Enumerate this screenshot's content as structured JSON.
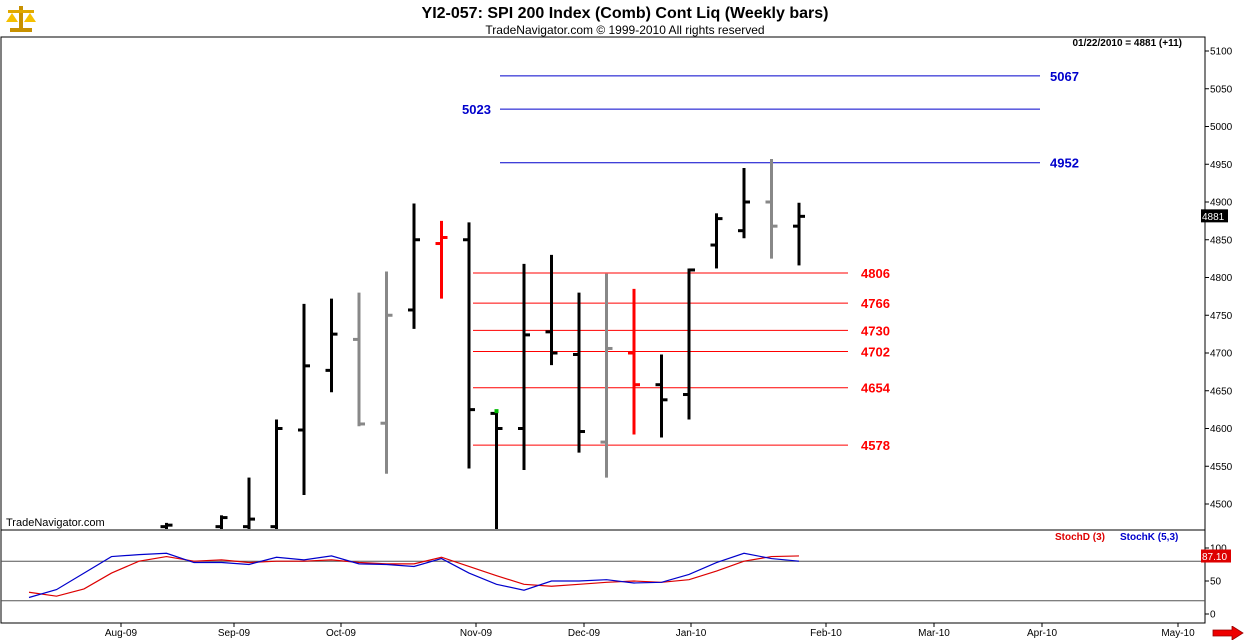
{
  "header": {
    "title": "YI2-057:  SPI 200 Index (Comb) Cont Liq  (Weekly bars)",
    "subtitle": "TradeNavigator.com © 1999-2010 All rights reserved",
    "readout": "01/22/2010 = 4881 (+11)",
    "watermark": "TradeNavigator.com"
  },
  "colors": {
    "up": "#000000",
    "down": "#888888",
    "red": "#ff0000",
    "blue": "#0000cc",
    "stochD": "#dd0000",
    "stochK": "#0000cc"
  },
  "chart_data": [
    {
      "type": "ohlc",
      "title": "YI2-057:  SPI 200 Index (Comb) Cont Liq  (Weekly bars)",
      "x_tick_labels": [
        "Aug-09",
        "Sep-09",
        "Oct-09",
        "Nov-09",
        "Dec-09",
        "Jan-10",
        "Feb-10",
        "Mar-10",
        "Apr-10",
        "May-10"
      ],
      "y_tick_labels": [
        "4500",
        "4550",
        "4600",
        "4650",
        "4700",
        "4750",
        "4800",
        "4850",
        "4900",
        "4950",
        "5000",
        "5050",
        "5100"
      ],
      "ylim": [
        4465,
        5115
      ],
      "last_price_label": "4881",
      "bars": [
        {
          "week": 5,
          "open": 4470,
          "high": 4475,
          "low": 4460,
          "close": 4472,
          "color": "black"
        },
        {
          "week": 7,
          "open": 4470,
          "high": 4485,
          "low": 4460,
          "close": 4482,
          "color": "black"
        },
        {
          "week": 8,
          "open": 4470,
          "high": 4535,
          "low": 4460,
          "close": 4480,
          "color": "black"
        },
        {
          "week": 9,
          "open": 4470,
          "high": 4612,
          "low": 4460,
          "close": 4600,
          "color": "black"
        },
        {
          "week": 10,
          "open": 4598,
          "high": 4765,
          "low": 4512,
          "close": 4683,
          "color": "black"
        },
        {
          "week": 11,
          "open": 4677,
          "high": 4772,
          "low": 4648,
          "close": 4725,
          "color": "black"
        },
        {
          "week": 12,
          "open": 4718,
          "high": 4780,
          "low": 4603,
          "close": 4606,
          "color": "gray"
        },
        {
          "week": 13,
          "open": 4607,
          "high": 4808,
          "low": 4540,
          "close": 4750,
          "color": "gray"
        },
        {
          "week": 14,
          "open": 4757,
          "high": 4898,
          "low": 4732,
          "close": 4850,
          "color": "black"
        },
        {
          "week": 15,
          "open": 4845,
          "high": 4875,
          "low": 4772,
          "close": 4853,
          "color": "red"
        },
        {
          "week": 16,
          "open": 4850,
          "high": 4873,
          "low": 4547,
          "close": 4625,
          "color": "black"
        },
        {
          "week": 17,
          "open": 4620,
          "high": 4625,
          "low": 4460,
          "close": 4600,
          "color": "black"
        },
        {
          "week": 18,
          "open": 4600,
          "high": 4818,
          "low": 4545,
          "close": 4724,
          "color": "black"
        },
        {
          "week": 19,
          "open": 4728,
          "high": 4830,
          "low": 4684,
          "close": 4700,
          "color": "black"
        },
        {
          "week": 20,
          "open": 4698,
          "high": 4780,
          "low": 4568,
          "close": 4596,
          "color": "black"
        },
        {
          "week": 21,
          "open": 4582,
          "high": 4805,
          "low": 4535,
          "close": 4706,
          "color": "gray"
        },
        {
          "week": 22,
          "open": 4700,
          "high": 4785,
          "low": 4592,
          "close": 4658,
          "color": "red"
        },
        {
          "week": 23,
          "open": 4658,
          "high": 4698,
          "low": 4588,
          "close": 4638,
          "color": "black"
        },
        {
          "week": 24,
          "open": 4645,
          "high": 4812,
          "low": 4612,
          "close": 4810,
          "color": "black"
        },
        {
          "week": 25,
          "open": 4843,
          "high": 4885,
          "low": 4812,
          "close": 4878,
          "color": "black"
        },
        {
          "week": 26,
          "open": 4862,
          "high": 4945,
          "low": 4852,
          "close": 4900,
          "color": "black"
        },
        {
          "week": 27,
          "open": 4900,
          "high": 4957,
          "low": 4825,
          "close": 4868,
          "color": "gray"
        },
        {
          "week": 28,
          "open": 4868,
          "high": 4899,
          "low": 4816,
          "close": 4881,
          "color": "black"
        }
      ],
      "levels": [
        {
          "value": 5067,
          "label": "5067",
          "color": "blue"
        },
        {
          "value": 5023,
          "label": "5023",
          "color": "blue"
        },
        {
          "value": 4952,
          "label": "4952",
          "color": "blue"
        },
        {
          "value": 4806,
          "label": "4806",
          "color": "red"
        },
        {
          "value": 4766,
          "label": "4766",
          "color": "red"
        },
        {
          "value": 4730,
          "label": "4730",
          "color": "red"
        },
        {
          "value": 4702,
          "label": "4702",
          "color": "red"
        },
        {
          "value": 4654,
          "label": "4654",
          "color": "red"
        },
        {
          "value": 4578,
          "label": "4578",
          "color": "red"
        }
      ]
    },
    {
      "type": "line",
      "y_tick_labels": [
        "0",
        "50",
        "100"
      ],
      "ylim": [
        -5,
        110
      ],
      "reference_lines": [
        80,
        20
      ],
      "last_value_label": "87.10",
      "series": [
        {
          "name": "StochD (3)",
          "values": [
            [
              0,
              33
            ],
            [
              1,
              27
            ],
            [
              2,
              38
            ],
            [
              3,
              62
            ],
            [
              4,
              80
            ],
            [
              5,
              87
            ],
            [
              6,
              80
            ],
            [
              7,
              82
            ],
            [
              8,
              78
            ],
            [
              9,
              80
            ],
            [
              10,
              80
            ],
            [
              11,
              82
            ],
            [
              12,
              78
            ],
            [
              13,
              76
            ],
            [
              14,
              76
            ],
            [
              15,
              86
            ],
            [
              16,
              72
            ],
            [
              17,
              58
            ],
            [
              18,
              45
            ],
            [
              19,
              42
            ],
            [
              20,
              45
            ],
            [
              21,
              48
            ],
            [
              22,
              50
            ],
            [
              23,
              48
            ],
            [
              24,
              52
            ],
            [
              25,
              65
            ],
            [
              26,
              80
            ],
            [
              27,
              87
            ],
            [
              28,
              88
            ]
          ]
        },
        {
          "name": "StochK (5,3)",
          "values": [
            [
              0,
              25
            ],
            [
              1,
              37
            ],
            [
              2,
              62
            ],
            [
              3,
              87
            ],
            [
              4,
              90
            ],
            [
              5,
              92
            ],
            [
              6,
              78
            ],
            [
              7,
              78
            ],
            [
              8,
              75
            ],
            [
              9,
              86
            ],
            [
              10,
              82
            ],
            [
              11,
              88
            ],
            [
              12,
              76
            ],
            [
              13,
              75
            ],
            [
              14,
              72
            ],
            [
              15,
              84
            ],
            [
              16,
              62
            ],
            [
              17,
              45
            ],
            [
              18,
              36
            ],
            [
              19,
              50
            ],
            [
              20,
              50
            ],
            [
              21,
              52
            ],
            [
              22,
              47
            ],
            [
              23,
              48
            ],
            [
              24,
              60
            ],
            [
              25,
              78
            ],
            [
              26,
              92
            ],
            [
              27,
              84
            ],
            [
              28,
              80
            ]
          ]
        }
      ]
    }
  ]
}
